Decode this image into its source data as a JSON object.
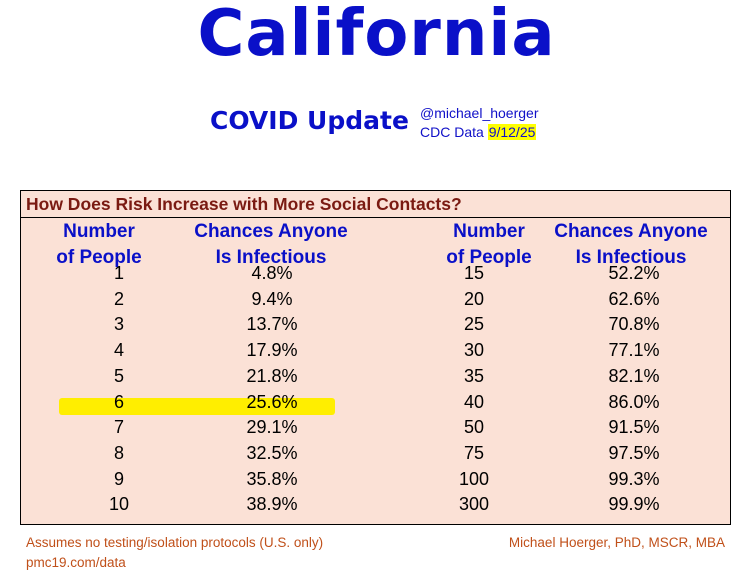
{
  "header": {
    "title": "California",
    "subtitle": "COVID Update",
    "handle": "@michael_hoerger",
    "cdc_prefix": "CDC Data ",
    "cdc_date": "9/12/25"
  },
  "table": {
    "title": "How Does Risk Increase with More Social Contacts?",
    "headers": {
      "people_line1": "Number",
      "people_line2": "of People",
      "chance_line1": "Chances Anyone",
      "chance_line2": "Is Infectious"
    },
    "highlight_color": "#ffee00",
    "highlighted_row": "6"
  },
  "chart_data": {
    "type": "table",
    "title": "How Does Risk Increase with More Social Contacts?",
    "columns": [
      "Number of People",
      "Chances Anyone Is Infectious"
    ],
    "left_rows": [
      {
        "people": "1",
        "chance": "4.8%"
      },
      {
        "people": "2",
        "chance": "9.4%"
      },
      {
        "people": "3",
        "chance": "13.7%"
      },
      {
        "people": "4",
        "chance": "17.9%"
      },
      {
        "people": "5",
        "chance": "21.8%"
      },
      {
        "people": "6",
        "chance": "25.6%"
      },
      {
        "people": "7",
        "chance": "29.1%"
      },
      {
        "people": "8",
        "chance": "32.5%"
      },
      {
        "people": "9",
        "chance": "35.8%"
      },
      {
        "people": "10",
        "chance": "38.9%"
      }
    ],
    "right_rows": [
      {
        "people": "15",
        "chance": "52.2%"
      },
      {
        "people": "20",
        "chance": "62.6%"
      },
      {
        "people": "25",
        "chance": "70.8%"
      },
      {
        "people": "30",
        "chance": "77.1%"
      },
      {
        "people": "35",
        "chance": "82.1%"
      },
      {
        "people": "40",
        "chance": "86.0%"
      },
      {
        "people": "50",
        "chance": "91.5%"
      },
      {
        "people": "75",
        "chance": "97.5%"
      },
      {
        "people": "100",
        "chance": "99.3%"
      },
      {
        "people": "300",
        "chance": "99.9%"
      }
    ]
  },
  "footer": {
    "note": "Assumes no testing/isolation protocols (U.S. only)",
    "source": "pmc19.com/data",
    "author": "Michael Hoerger, PhD, MSCR, MBA"
  },
  "colors": {
    "title_blue": "#0a10c8",
    "table_bg": "#fbe1d6",
    "table_title": "#7a1a12",
    "footer_text": "#c0501a",
    "date_highlight": "#ffff00"
  }
}
